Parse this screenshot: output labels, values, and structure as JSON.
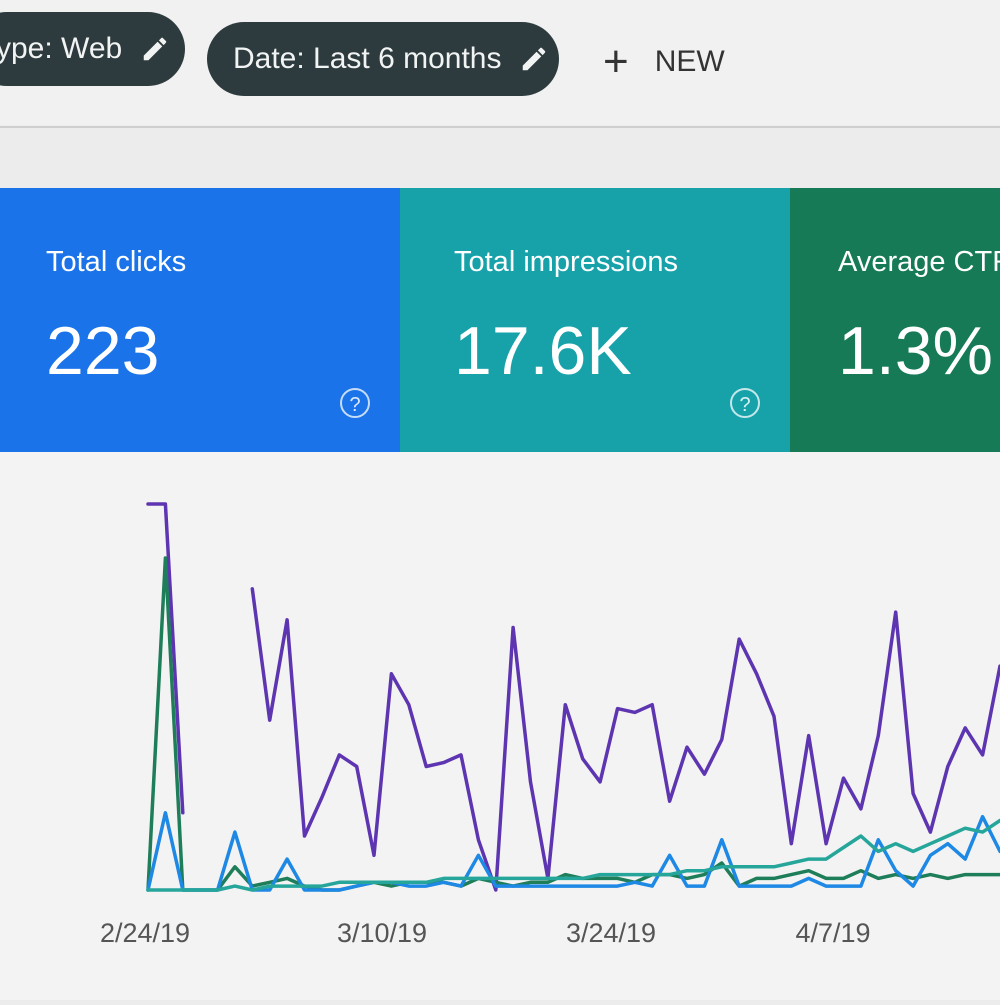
{
  "toolbar": {
    "filter_type": "ype: Web",
    "filter_date": "Date: Last 6 months",
    "edit_icon": "pencil-icon",
    "new_icon": "plus-icon",
    "new_label": "NEW"
  },
  "cards": {
    "clicks": {
      "title": "Total clicks",
      "value": "223",
      "color": "#1a73e8",
      "help": "?"
    },
    "impressions": {
      "title": "Total impressions",
      "value": "17.6K",
      "color": "#17a2aa",
      "help": "?"
    },
    "ctr": {
      "title": "Average CTR",
      "value": "1.3%",
      "color": "#157a55"
    }
  },
  "chart_data": {
    "type": "line",
    "x_tick_labels": [
      "2/24/19",
      "3/10/19",
      "3/24/19",
      "4/7/19"
    ],
    "y_range": [
      0,
      100
    ],
    "grid": false,
    "series": [
      {
        "color": "#5e35b1",
        "segments": [
          [
            [
              0,
              100
            ],
            [
              1,
              100
            ],
            [
              2,
              20
            ]
          ],
          [
            [
              6,
              78
            ],
            [
              7,
              44
            ],
            [
              8,
              70
            ],
            [
              9,
              14
            ],
            [
              10,
              24
            ],
            [
              11,
              35
            ],
            [
              12,
              32
            ],
            [
              13,
              9
            ],
            [
              14,
              56
            ],
            [
              15,
              48
            ],
            [
              16,
              32
            ],
            [
              17,
              33
            ],
            [
              18,
              35
            ],
            [
              19,
              13
            ],
            [
              20,
              0
            ],
            [
              21,
              68
            ],
            [
              22,
              28
            ],
            [
              23,
              3
            ],
            [
              24,
              48
            ],
            [
              25,
              34
            ],
            [
              26,
              28
            ],
            [
              27,
              47
            ],
            [
              28,
              46
            ],
            [
              29,
              48
            ],
            [
              30,
              23
            ],
            [
              31,
              37
            ],
            [
              32,
              30
            ],
            [
              33,
              39
            ],
            [
              34,
              65
            ],
            [
              35,
              56
            ],
            [
              36,
              45
            ],
            [
              37,
              12
            ],
            [
              38,
              40
            ],
            [
              39,
              12
            ],
            [
              40,
              29
            ],
            [
              41,
              21
            ],
            [
              42,
              40
            ],
            [
              43,
              72
            ],
            [
              44,
              25
            ],
            [
              45,
              15
            ],
            [
              46,
              32
            ],
            [
              47,
              42
            ],
            [
              48,
              35
            ],
            [
              49,
              58
            ]
          ]
        ]
      },
      {
        "color": "#1e7e5a",
        "segments": [
          [
            [
              0,
              0
            ],
            [
              1,
              86
            ],
            [
              2,
              0
            ],
            [
              3,
              0
            ],
            [
              4,
              0
            ],
            [
              5,
              6
            ],
            [
              6,
              1
            ],
            [
              7,
              2
            ],
            [
              8,
              3
            ],
            [
              9,
              1
            ],
            [
              10,
              0
            ],
            [
              11,
              0
            ],
            [
              12,
              1
            ],
            [
              13,
              2
            ],
            [
              14,
              1
            ],
            [
              15,
              2
            ],
            [
              16,
              2
            ],
            [
              17,
              2
            ],
            [
              18,
              1
            ],
            [
              19,
              3
            ],
            [
              20,
              2
            ],
            [
              21,
              1
            ],
            [
              22,
              2
            ],
            [
              23,
              2
            ],
            [
              24,
              4
            ],
            [
              25,
              3
            ],
            [
              26,
              3
            ],
            [
              27,
              3
            ],
            [
              28,
              2
            ],
            [
              29,
              4
            ],
            [
              30,
              4
            ],
            [
              31,
              3
            ],
            [
              32,
              4
            ],
            [
              33,
              7
            ],
            [
              34,
              1
            ],
            [
              35,
              3
            ],
            [
              36,
              3
            ],
            [
              37,
              4
            ],
            [
              38,
              5
            ],
            [
              39,
              3
            ],
            [
              40,
              3
            ],
            [
              41,
              5
            ],
            [
              42,
              3
            ],
            [
              43,
              4
            ],
            [
              44,
              3
            ],
            [
              45,
              4
            ],
            [
              46,
              3
            ],
            [
              47,
              4
            ],
            [
              48,
              4
            ],
            [
              49,
              4
            ]
          ]
        ]
      },
      {
        "color": "#1e88e5",
        "segments": [
          [
            [
              0,
              0
            ],
            [
              1,
              20
            ],
            [
              2,
              0
            ],
            [
              3,
              0
            ],
            [
              4,
              0
            ],
            [
              5,
              15
            ],
            [
              6,
              0
            ],
            [
              7,
              0
            ],
            [
              8,
              8
            ],
            [
              9,
              0
            ],
            [
              10,
              0
            ],
            [
              11,
              0
            ],
            [
              12,
              1
            ],
            [
              13,
              2
            ],
            [
              14,
              2
            ],
            [
              15,
              1
            ],
            [
              16,
              1
            ],
            [
              17,
              2
            ],
            [
              18,
              1
            ],
            [
              19,
              9
            ],
            [
              20,
              1
            ],
            [
              21,
              1
            ],
            [
              22,
              1
            ],
            [
              23,
              1
            ],
            [
              24,
              1
            ],
            [
              25,
              1
            ],
            [
              26,
              1
            ],
            [
              27,
              1
            ],
            [
              28,
              2
            ],
            [
              29,
              1
            ],
            [
              30,
              9
            ],
            [
              31,
              1
            ],
            [
              32,
              1
            ],
            [
              33,
              13
            ],
            [
              34,
              1
            ],
            [
              35,
              1
            ],
            [
              36,
              1
            ],
            [
              37,
              1
            ],
            [
              38,
              3
            ],
            [
              39,
              1
            ],
            [
              40,
              1
            ],
            [
              41,
              1
            ],
            [
              42,
              13
            ],
            [
              43,
              5
            ],
            [
              44,
              1
            ],
            [
              45,
              9
            ],
            [
              46,
              12
            ],
            [
              47,
              8
            ],
            [
              48,
              19
            ],
            [
              49,
              10
            ]
          ]
        ]
      },
      {
        "color": "#26a69a",
        "segments": [
          [
            [
              0,
              0
            ],
            [
              1,
              0
            ],
            [
              2,
              0
            ],
            [
              3,
              0
            ],
            [
              4,
              0
            ],
            [
              5,
              1
            ],
            [
              6,
              0
            ],
            [
              7,
              1
            ],
            [
              8,
              1
            ],
            [
              9,
              1
            ],
            [
              10,
              1
            ],
            [
              11,
              2
            ],
            [
              12,
              2
            ],
            [
              13,
              2
            ],
            [
              14,
              2
            ],
            [
              15,
              2
            ],
            [
              16,
              2
            ],
            [
              17,
              3
            ],
            [
              18,
              3
            ],
            [
              19,
              3
            ],
            [
              20,
              3
            ],
            [
              21,
              3
            ],
            [
              22,
              3
            ],
            [
              23,
              3
            ],
            [
              24,
              3
            ],
            [
              25,
              3
            ],
            [
              26,
              4
            ],
            [
              27,
              4
            ],
            [
              28,
              4
            ],
            [
              29,
              4
            ],
            [
              30,
              4
            ],
            [
              31,
              5
            ],
            [
              32,
              5
            ],
            [
              33,
              6
            ],
            [
              34,
              6
            ],
            [
              35,
              6
            ],
            [
              36,
              6
            ],
            [
              37,
              7
            ],
            [
              38,
              8
            ],
            [
              39,
              8
            ],
            [
              40,
              11
            ],
            [
              41,
              14
            ],
            [
              42,
              10
            ],
            [
              43,
              12
            ],
            [
              44,
              10
            ],
            [
              45,
              12
            ],
            [
              46,
              14
            ],
            [
              47,
              16
            ],
            [
              48,
              15
            ],
            [
              49,
              18
            ]
          ]
        ]
      }
    ]
  }
}
